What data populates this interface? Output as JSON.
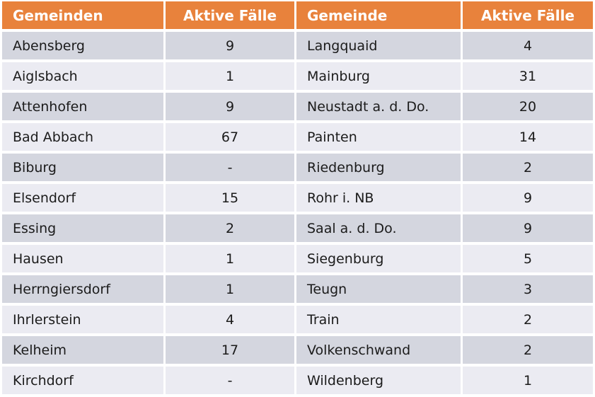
{
  "chart_data": {
    "type": "table",
    "columns": [
      "Gemeinden",
      "Aktive Fälle",
      "Gemeinde",
      "Aktive Fälle"
    ],
    "rows": [
      [
        "Abensberg",
        "9",
        "Langquaid",
        "4"
      ],
      [
        "Aiglsbach",
        "1",
        "Mainburg",
        "31"
      ],
      [
        "Attenhofen",
        "9",
        "Neustadt a. d. Do.",
        "20"
      ],
      [
        "Bad Abbach",
        "67",
        "Painten",
        "14"
      ],
      [
        "Biburg",
        "-",
        "Riedenburg",
        "2"
      ],
      [
        "Elsendorf",
        "15",
        "Rohr i. NB",
        "9"
      ],
      [
        "Essing",
        "2",
        "Saal a. d. Do.",
        "9"
      ],
      [
        "Hausen",
        "1",
        "Siegenburg",
        "5"
      ],
      [
        "Herrngiersdorf",
        "1",
        "Teugn",
        "3"
      ],
      [
        "Ihrlerstein",
        "4",
        "Train",
        "2"
      ],
      [
        "Kelheim",
        "17",
        "Volkenschwand",
        "2"
      ],
      [
        "Kirchdorf",
        "-",
        "Wildenberg",
        "1"
      ]
    ]
  },
  "colors": {
    "header_bg": "#E8823C",
    "header_text": "#FFFFFF",
    "row_dark_bg": "#D4D6DF",
    "row_light_bg": "#EBEBF2",
    "cell_text": "#1B1B1B",
    "background": "#FFFFFF"
  }
}
